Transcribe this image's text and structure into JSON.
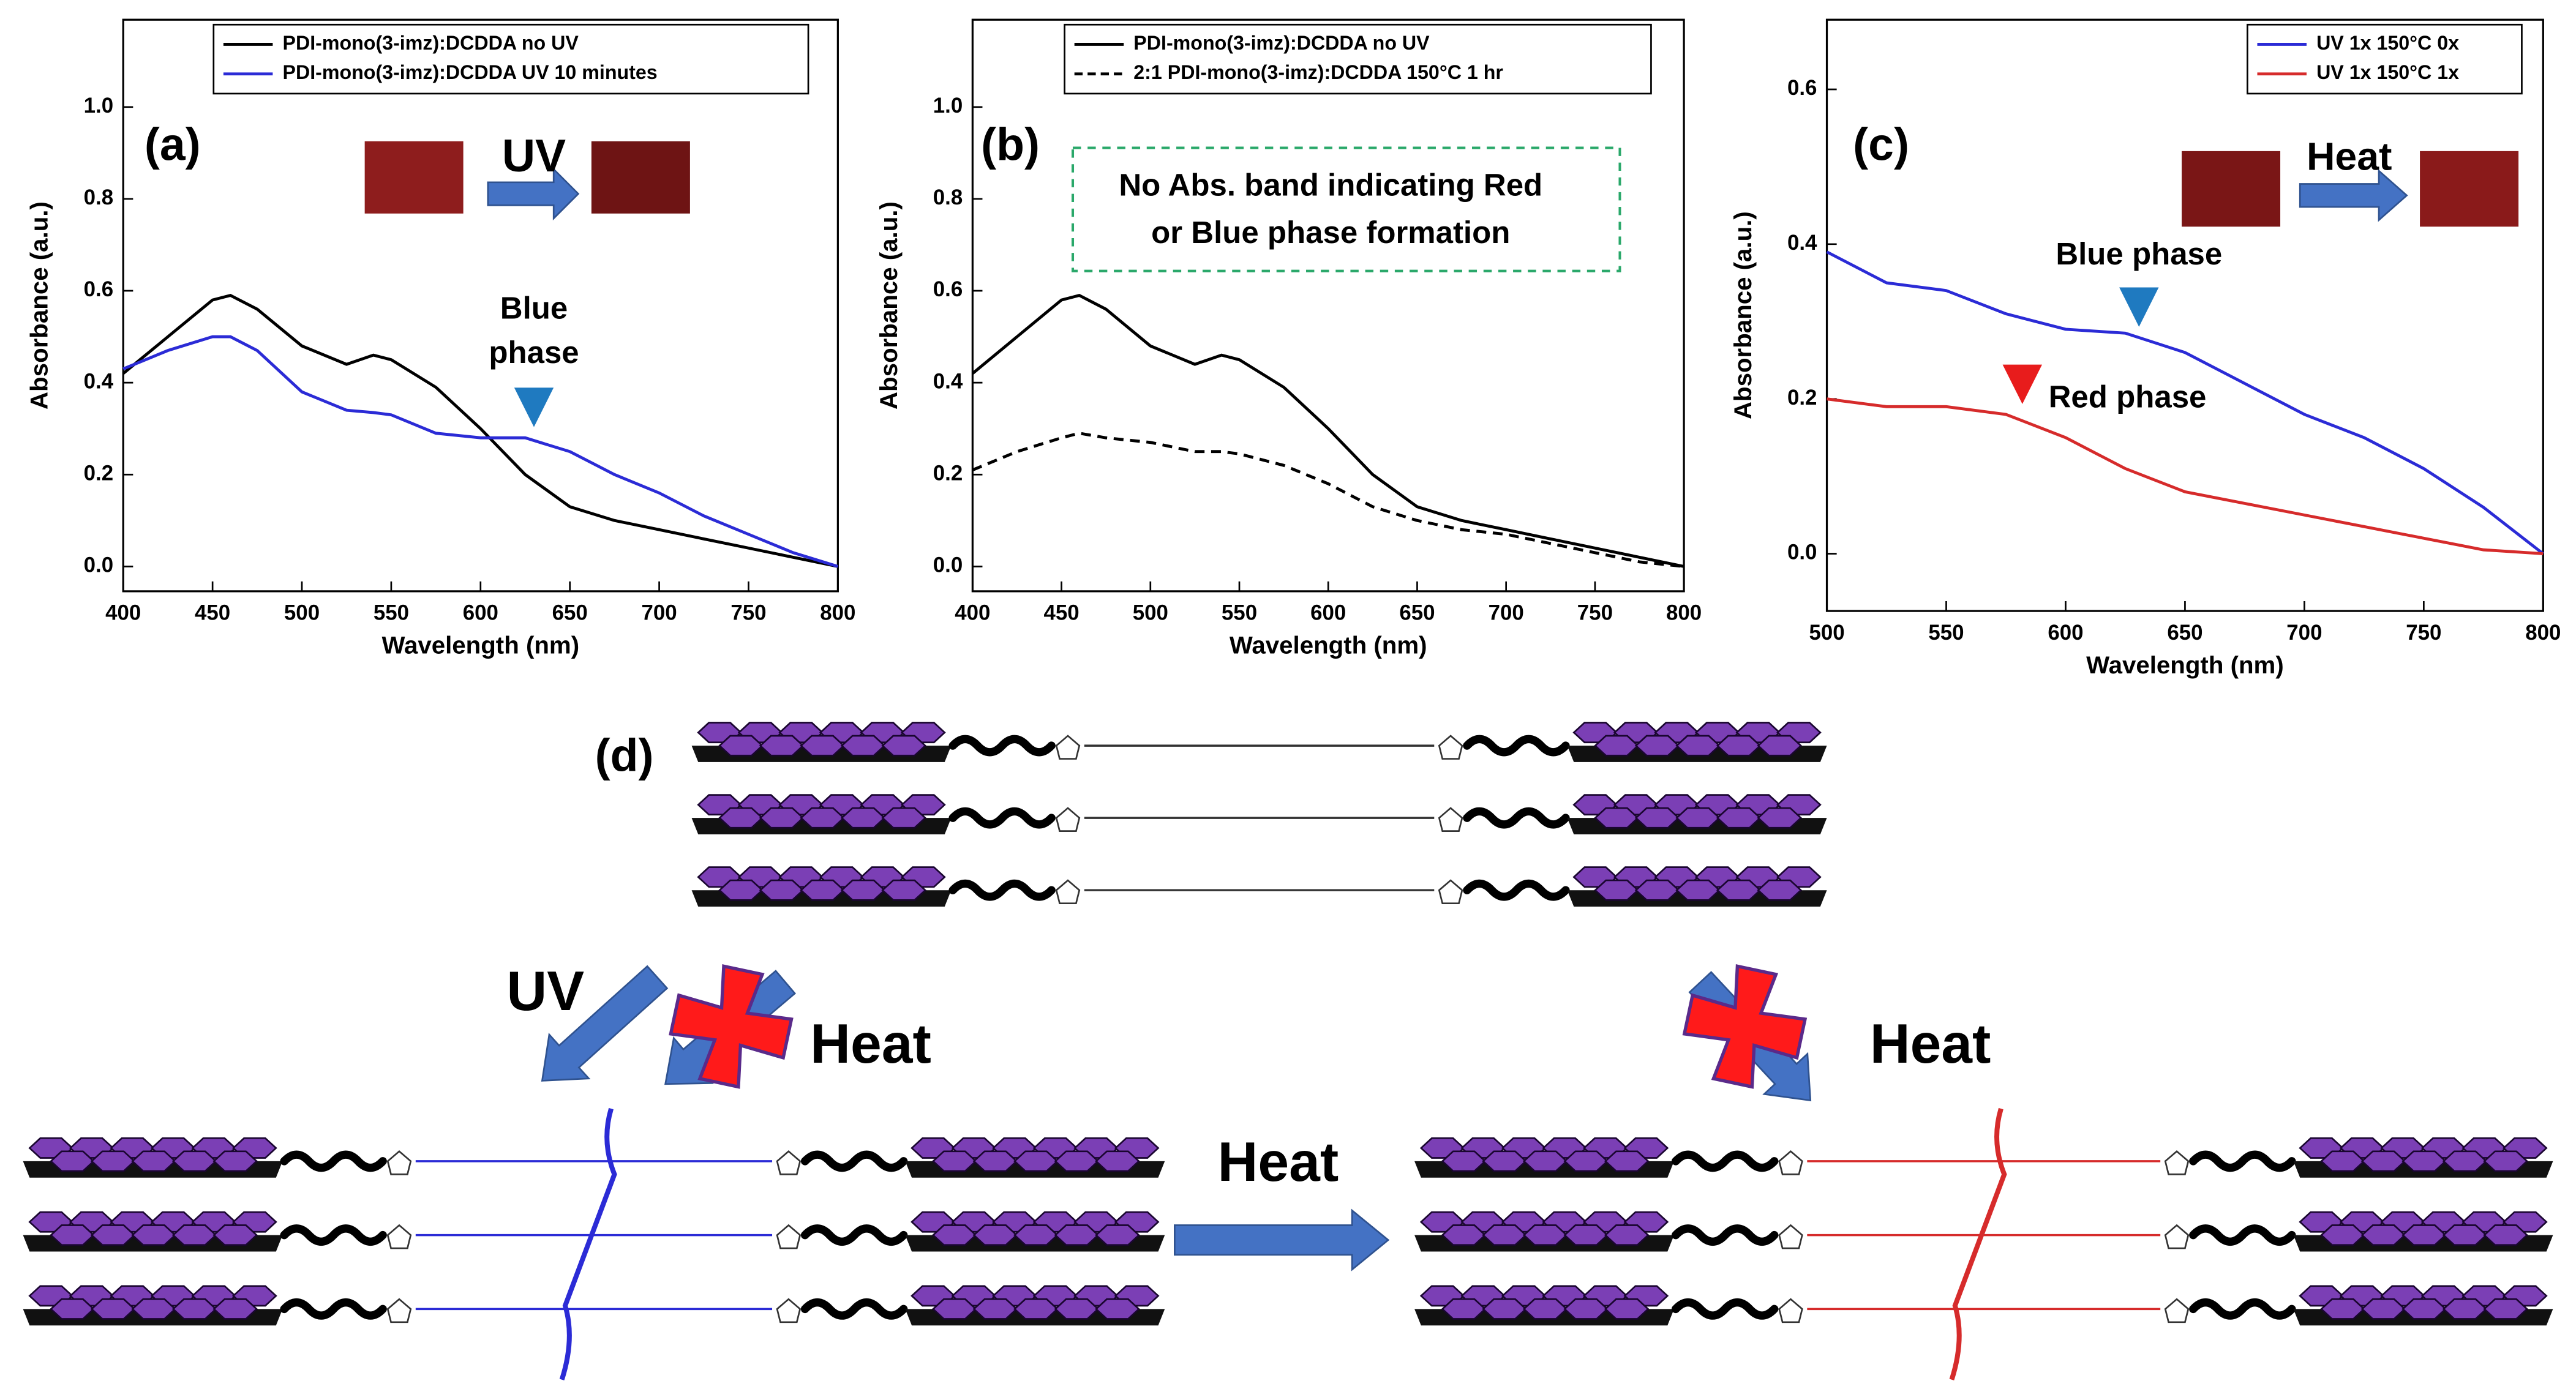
{
  "chart_data": [
    {
      "type": "line",
      "panel_label": "(a)",
      "annotations": [
        "UV",
        "Blue",
        "phase"
      ],
      "xlabel": "Wavelength (nm)",
      "ylabel": "Absorbance (a.u.)",
      "x": [
        400,
        425,
        450,
        460,
        475,
        500,
        525,
        540,
        550,
        575,
        600,
        625,
        650,
        675,
        700,
        725,
        750,
        775,
        800
      ],
      "series": [
        {
          "name": "PDI-mono(3-imz):DCDDA no UV",
          "color": "#000000",
          "dash": false,
          "values": [
            0.42,
            0.5,
            0.58,
            0.59,
            0.56,
            0.48,
            0.44,
            0.46,
            0.45,
            0.39,
            0.3,
            0.2,
            0.13,
            0.1,
            0.08,
            0.06,
            0.04,
            0.02,
            0.0
          ]
        },
        {
          "name": "PDI-mono(3-imz):DCDDA UV 10 minutes",
          "color": "#2b2bd6",
          "dash": false,
          "values": [
            0.43,
            0.47,
            0.5,
            0.5,
            0.47,
            0.38,
            0.34,
            0.335,
            0.33,
            0.29,
            0.28,
            0.28,
            0.25,
            0.2,
            0.16,
            0.11,
            0.07,
            0.03,
            0.0
          ]
        }
      ],
      "xlim": [
        400,
        800
      ],
      "ylim": [
        -0.054,
        1.19
      ],
      "xticks": [
        400,
        450,
        500,
        550,
        600,
        650,
        700,
        750,
        800
      ],
      "yticks": [
        {
          "value": 0,
          "label": "0.0"
        },
        0.2,
        0.4,
        0.6,
        0.8,
        {
          "value": 1,
          "label": "1.0"
        }
      ]
    },
    {
      "type": "line",
      "panel_label": "(b)",
      "annotations": [
        "No Abs. band indicating Red",
        "or Blue phase formation"
      ],
      "xlabel": "Wavelength (nm)",
      "ylabel": "Absorbance (a.u.)",
      "x": [
        400,
        425,
        450,
        460,
        475,
        500,
        525,
        540,
        550,
        575,
        600,
        625,
        650,
        675,
        700,
        725,
        750,
        775,
        800
      ],
      "series": [
        {
          "name": "PDI-mono(3-imz):DCDDA no UV",
          "color": "#000000",
          "dash": false,
          "values": [
            0.42,
            0.5,
            0.58,
            0.59,
            0.56,
            0.48,
            0.44,
            0.46,
            0.45,
            0.39,
            0.3,
            0.2,
            0.13,
            0.1,
            0.08,
            0.06,
            0.04,
            0.02,
            0.0
          ]
        },
        {
          "name": "2:1 PDI-mono(3-imz):DCDDA 150°C 1 hr",
          "color": "#000000",
          "dash": true,
          "values": [
            0.21,
            0.25,
            0.28,
            0.29,
            0.28,
            0.27,
            0.25,
            0.25,
            0.245,
            0.22,
            0.18,
            0.13,
            0.1,
            0.08,
            0.07,
            0.05,
            0.03,
            0.01,
            0.0
          ]
        }
      ],
      "xlim": [
        400,
        800
      ],
      "ylim": [
        -0.054,
        1.19
      ],
      "xticks": [
        400,
        450,
        500,
        550,
        600,
        650,
        700,
        750,
        800
      ],
      "yticks": [
        {
          "value": 0,
          "label": "0.0"
        },
        0.2,
        0.4,
        0.6,
        0.8,
        {
          "value": 1,
          "label": "1.0"
        }
      ]
    },
    {
      "type": "line",
      "panel_label": "(c)",
      "annotations": [
        "Heat",
        "Blue phase",
        "Red phase"
      ],
      "xlabel": "Wavelength (nm)",
      "ylabel": "Absorbance (a.u.)",
      "x": [
        500,
        525,
        550,
        575,
        600,
        625,
        650,
        675,
        700,
        725,
        750,
        775,
        800
      ],
      "series": [
        {
          "name": "UV 1x 150°C 0x",
          "color": "#2b2bd6",
          "dash": false,
          "values": [
            0.39,
            0.35,
            0.34,
            0.31,
            0.29,
            0.285,
            0.26,
            0.22,
            0.18,
            0.15,
            0.11,
            0.06,
            0.0
          ]
        },
        {
          "name": "UV 1x 150°C 1x",
          "color": "#d62b2b",
          "dash": false,
          "values": [
            0.2,
            0.19,
            0.19,
            0.18,
            0.15,
            0.11,
            0.08,
            0.065,
            0.05,
            0.035,
            0.02,
            0.005,
            0.0
          ]
        }
      ],
      "xlim": [
        500,
        800
      ],
      "ylim": [
        -0.074,
        0.69
      ],
      "xticks": [
        500,
        550,
        600,
        650,
        700,
        750,
        800
      ],
      "yticks": [
        {
          "value": 0,
          "label": "0.0"
        },
        0.2,
        0.4,
        0.6
      ]
    }
  ],
  "diagram": {
    "label": "(d)",
    "arrow_labels": [
      "UV",
      "Heat",
      "Heat",
      "Heat"
    ]
  }
}
